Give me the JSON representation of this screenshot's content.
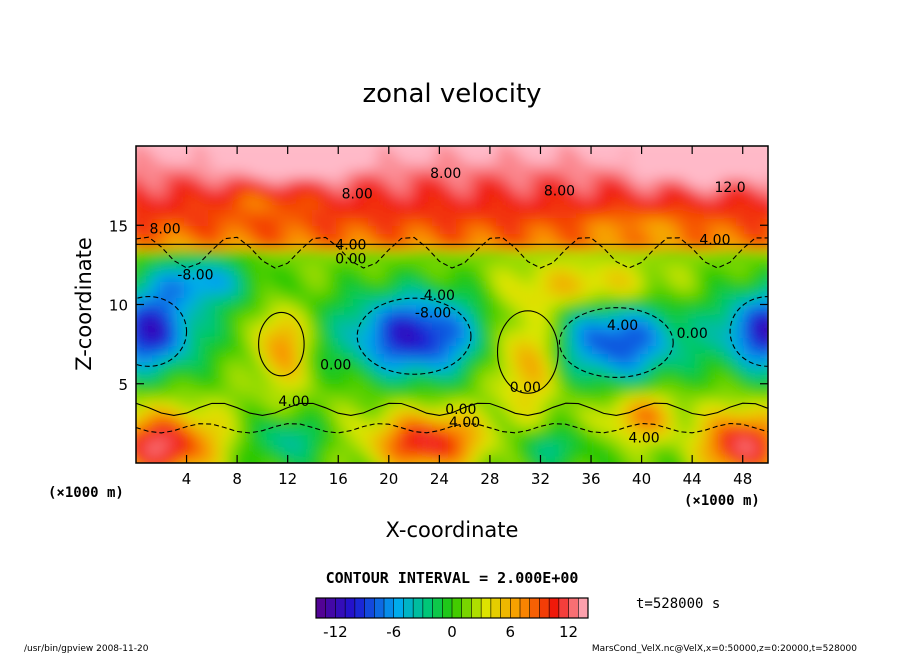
{
  "chart_data": {
    "type": "heatmap",
    "title": "zonal velocity",
    "xlabel": "X-coordinate",
    "ylabel": "Z-coordinate",
    "x_unit_left": "(×1000 m)",
    "x_unit_right": "(×1000 m)",
    "xlim": [
      0,
      50
    ],
    "ylim": [
      0,
      20
    ],
    "x_ticks": [
      4,
      8,
      12,
      16,
      20,
      24,
      28,
      32,
      36,
      40,
      44,
      48
    ],
    "y_ticks": [
      5,
      10,
      15
    ],
    "contour_interval_text": "CONTOUR INTERVAL = 2.000E+00",
    "time_text": "t=528000 s",
    "colorbar": {
      "min": -14,
      "max": 14,
      "ticks": [
        -12,
        -6,
        0,
        6,
        12
      ]
    },
    "contour_labels": [
      {
        "text": "8.00",
        "x": 24.5,
        "y": 18.3
      },
      {
        "text": "8.00",
        "x": 17.5,
        "y": 17.0
      },
      {
        "text": "8.00",
        "x": 33.5,
        "y": 17.2
      },
      {
        "text": "12.0",
        "x": 47.0,
        "y": 17.4
      },
      {
        "text": "8.00",
        "x": 2.3,
        "y": 14.8
      },
      {
        "text": "4.00",
        "x": 17.0,
        "y": 13.8
      },
      {
        "text": "0.00",
        "x": 17.0,
        "y": 12.9
      },
      {
        "text": "4.00",
        "x": 45.8,
        "y": 14.1
      },
      {
        "text": "-8.00",
        "x": 4.7,
        "y": 11.9
      },
      {
        "text": "4.00",
        "x": 24.0,
        "y": 10.6
      },
      {
        "text": "-8.00",
        "x": 23.5,
        "y": 9.5
      },
      {
        "text": "4.00",
        "x": 38.5,
        "y": 8.7
      },
      {
        "text": "0.00",
        "x": 44.0,
        "y": 8.2
      },
      {
        "text": "0.00",
        "x": 15.8,
        "y": 6.2
      },
      {
        "text": "0.00",
        "x": 30.8,
        "y": 4.8
      },
      {
        "text": "4.00",
        "x": 12.5,
        "y": 3.9
      },
      {
        "text": "0.00",
        "x": 25.7,
        "y": 3.4
      },
      {
        "text": "4.00",
        "x": 26.0,
        "y": 2.6
      },
      {
        "text": "4.00",
        "x": 40.2,
        "y": 1.6
      }
    ]
  },
  "footer": {
    "left": "/usr/bin/gpview  2008-11-20",
    "right": "MarsCond_VelX.nc@VelX,x=0:50000,z=0:20000,t=528000"
  }
}
